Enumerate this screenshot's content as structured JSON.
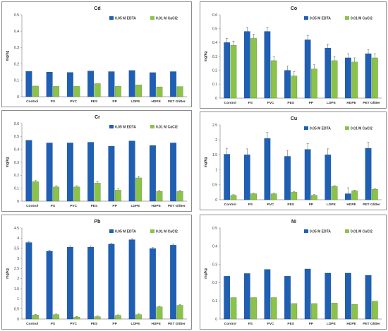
{
  "colors": {
    "edta": "#1f5fb4",
    "cacl2": "#8bc34a",
    "edta_edge": "#174a8c",
    "cacl2_edge": "#5f8f2e",
    "axis": "#8c8c8c",
    "grid": "#d9d9d9"
  },
  "chart_data": [
    {
      "type": "bar",
      "title": "Cd",
      "ylabel": "mg/kg",
      "categories": [
        "Control",
        "PS",
        "PVC",
        "PES",
        "PP",
        "LDPE",
        "HDPE",
        "PET Glitter"
      ],
      "ylim": [
        0,
        0.5
      ],
      "yticks": [
        "0",
        "0.1",
        "0.2",
        "0.3",
        "0.4",
        "0.5"
      ],
      "series": [
        {
          "name": "0.05 M EDTA",
          "values": [
            0.155,
            0.15,
            0.148,
            0.157,
            0.153,
            0.16,
            0.147,
            0.153
          ],
          "errors": [
            0,
            0,
            0,
            0,
            0,
            0,
            0,
            0
          ]
        },
        {
          "name": "0.01 M CaCl2",
          "values": [
            0.065,
            0.063,
            0.063,
            0.08,
            0.064,
            0.072,
            0.06,
            0.062
          ],
          "errors": [
            0,
            0,
            0,
            0,
            0,
            0,
            0,
            0
          ]
        }
      ],
      "legend": "top-right"
    },
    {
      "type": "bar",
      "title": "Co",
      "ylabel": "mg/kg",
      "categories": [
        "Control",
        "PS",
        "PVC",
        "PES",
        "PP",
        "LDPE",
        "HDPE",
        "PET Glitter"
      ],
      "ylim": [
        0,
        0.6
      ],
      "yticks": [
        "0",
        "0.1",
        "0.2",
        "0.3",
        "0.4",
        "0.5",
        "0.6"
      ],
      "series": [
        {
          "name": "0.05 M EDTA",
          "values": [
            0.4,
            0.48,
            0.48,
            0.2,
            0.42,
            0.36,
            0.29,
            0.32
          ],
          "errors": [
            0.03,
            0.03,
            0.03,
            0.03,
            0.03,
            0.03,
            0.03,
            0.03
          ]
        },
        {
          "name": "0.01 M CaCl2",
          "values": [
            0.38,
            0.43,
            0.27,
            0.16,
            0.21,
            0.27,
            0.26,
            0.29
          ],
          "errors": [
            0.03,
            0.03,
            0.03,
            0.03,
            0.03,
            0.03,
            0.03,
            0.03
          ]
        }
      ],
      "legend": "top-right"
    },
    {
      "type": "bar",
      "title": "Cr",
      "ylabel": "mg/kg",
      "categories": [
        "Control",
        "PS",
        "PVC",
        "PES",
        "PP",
        "LDPE",
        "HDPE",
        "PET Glitter"
      ],
      "ylim": [
        0,
        0.6
      ],
      "yticks": [
        "0",
        "0.1",
        "0.2",
        "0.3",
        "0.4",
        "0.5",
        "0.6"
      ],
      "series": [
        {
          "name": "0.05 M EDTA",
          "values": [
            0.47,
            0.45,
            0.45,
            0.455,
            0.425,
            0.465,
            0.43,
            0.45
          ],
          "errors": [
            0,
            0,
            0,
            0,
            0,
            0,
            0,
            0
          ]
        },
        {
          "name": "0.01 M CaCl2",
          "values": [
            0.15,
            0.11,
            0.11,
            0.14,
            0.085,
            0.18,
            0.075,
            0.075
          ],
          "errors": [
            0.01,
            0.01,
            0.01,
            0.01,
            0.01,
            0.01,
            0.01,
            0.01
          ]
        }
      ],
      "legend": "top-right"
    },
    {
      "type": "bar",
      "title": "Cu",
      "ylabel": "mg/kg",
      "categories": [
        "Control",
        "PS",
        "PVC",
        "PES",
        "PP",
        "LDPE",
        "HDPE",
        "PET Glitter"
      ],
      "ylim": [
        0,
        2.5
      ],
      "yticks": [
        "0",
        "0.5",
        "1",
        "1.5",
        "2",
        "2.5"
      ],
      "series": [
        {
          "name": "0.05 M EDTA",
          "values": [
            1.52,
            1.5,
            2.05,
            1.45,
            1.68,
            1.5,
            0.2,
            1.72
          ],
          "errors": [
            0.2,
            0.2,
            0.2,
            0.2,
            0.2,
            0.2,
            0.2,
            0.2
          ]
        },
        {
          "name": "0.01 M CaCl2",
          "values": [
            0.15,
            0.2,
            0.2,
            0.25,
            0.15,
            0.45,
            0.3,
            0.35
          ],
          "errors": [
            0.02,
            0.02,
            0.02,
            0.02,
            0.02,
            0.02,
            0.02,
            0.02
          ]
        }
      ],
      "legend": "top-right"
    },
    {
      "type": "bar",
      "title": "Pb",
      "ylabel": "mg/kg",
      "categories": [
        "Control",
        "PS",
        "PVC",
        "PES",
        "PP",
        "LDPE",
        "HDPE",
        "PET Glitter"
      ],
      "ylim": [
        0,
        4.5
      ],
      "yticks": [
        "0",
        "0.5",
        "1",
        "1.5",
        "2",
        "2.5",
        "3",
        "3.5",
        "4",
        "4.5"
      ],
      "series": [
        {
          "name": "0.05 M EDTA",
          "values": [
            3.78,
            3.35,
            3.55,
            3.55,
            3.7,
            3.92,
            3.48,
            3.65
          ],
          "errors": [
            0.05,
            0.05,
            0.05,
            0.05,
            0.05,
            0.05,
            0.05,
            0.05
          ]
        },
        {
          "name": "0.01 M CaCl2",
          "values": [
            0.2,
            0.22,
            0.1,
            0.12,
            0.18,
            0.22,
            0.6,
            0.68
          ],
          "errors": [
            0.03,
            0.03,
            0.03,
            0.03,
            0.03,
            0.03,
            0.03,
            0.03
          ]
        }
      ],
      "legend": "top-right"
    },
    {
      "type": "bar",
      "title": "Ni",
      "ylabel": "mg/kg",
      "categories": [
        "Control",
        "PS",
        "PVC",
        "PES",
        "PP",
        "LDPE",
        "HDPE",
        "PET Glitter"
      ],
      "ylim": [
        0,
        0.5
      ],
      "yticks": [
        "0",
        "0.1",
        "0.2",
        "0.3",
        "0.4",
        "0.5"
      ],
      "series": [
        {
          "name": "0.05 M EDTA",
          "values": [
            0.235,
            0.25,
            0.272,
            0.235,
            0.275,
            0.252,
            0.252,
            0.24
          ],
          "errors": [
            0,
            0,
            0,
            0,
            0,
            0,
            0,
            0
          ]
        },
        {
          "name": "0.01 M CaCl2",
          "values": [
            0.118,
            0.118,
            0.118,
            0.085,
            0.085,
            0.088,
            0.08,
            0.098
          ],
          "errors": [
            0,
            0,
            0,
            0,
            0,
            0,
            0,
            0
          ]
        }
      ],
      "legend": "top-right"
    }
  ]
}
